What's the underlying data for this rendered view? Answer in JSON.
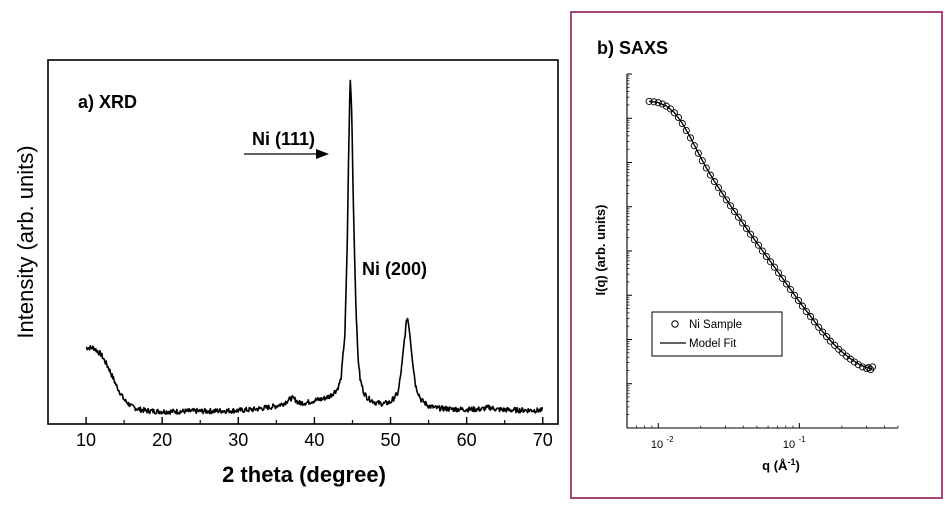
{
  "colors": {
    "frame": "#a4457a",
    "ink": "#000000",
    "background": "#ffffff"
  },
  "chart_data": [
    {
      "type": "line",
      "panel_label": "a) XRD",
      "xlabel": "2 theta (degree)",
      "ylabel": "Intensity (arb. units)",
      "xlim": [
        5,
        72
      ],
      "ylim": [
        0,
        105
      ],
      "x_ticks": [
        10,
        20,
        30,
        40,
        50,
        60,
        70
      ],
      "y_tick_labels_shown": false,
      "grid": false,
      "series": [
        {
          "x": [
            10,
            11,
            12,
            13,
            14,
            15,
            16,
            17,
            18,
            20,
            22,
            24,
            26,
            28,
            30,
            32,
            34,
            35,
            36,
            37,
            37.5,
            38,
            39,
            40,
            41,
            42,
            43,
            43.5,
            44,
            44.3,
            44.5,
            44.7,
            44.9,
            45.1,
            45.4,
            45.7,
            46,
            46.5,
            47,
            48,
            49,
            50,
            51,
            51.5,
            52,
            52.2,
            52.5,
            52.9,
            53.3,
            54,
            55,
            56,
            58,
            60,
            62,
            63,
            64,
            66,
            68,
            70
          ],
          "y": [
            22,
            22,
            20,
            16,
            11,
            7,
            5,
            4.2,
            3.8,
            3.6,
            3.6,
            3.7,
            3.7,
            3.8,
            3.9,
            4.2,
            4.8,
            5.2,
            6.0,
            7.5,
            7.0,
            6.0,
            6.2,
            6.8,
            7.2,
            8.0,
            10,
            13,
            26,
            50,
            78,
            100,
            90,
            65,
            38,
            20,
            13,
            9,
            7.5,
            6.2,
            5.8,
            6.3,
            9,
            17,
            28,
            31,
            27,
            18,
            11,
            7,
            5.2,
            4.6,
            4.3,
            4.2,
            4.3,
            4.8,
            4.2,
            4.0,
            4.0,
            3.9
          ]
        }
      ],
      "annotations": [
        {
          "text": "Ni (111)",
          "x": 44.7,
          "y": 100,
          "arrow": true
        },
        {
          "text": "Ni (200)",
          "x": 52.2,
          "y": 31
        }
      ]
    },
    {
      "type": "line",
      "panel_label": "b) SAXS",
      "xlabel_base": "q (Å",
      "xlabel_sup": "-1",
      "xlabel_close": ")",
      "ylabel": "I(q) (arb. units)",
      "x_scale": "log",
      "y_scale": "log",
      "xlim": [
        0.006,
        0.5
      ],
      "ylim": [
        0.0001,
        10000
      ],
      "x_tick_labels": [
        {
          "value": 0.01,
          "base": "10",
          "exp": "-2"
        },
        {
          "value": 0.1,
          "base": "10",
          "exp": "-1"
        }
      ],
      "y_tick_labels_shown": false,
      "grid": false,
      "legend": {
        "position": "bottom-left",
        "entries": [
          "Ni Sample",
          "Model Fit"
        ]
      },
      "series": [
        {
          "name": "Ni Sample",
          "marker": "open-circle",
          "x": [
            0.0086,
            0.0093,
            0.01,
            0.0107,
            0.0114,
            0.0122,
            0.013,
            0.0139,
            0.0148,
            0.0158,
            0.0169,
            0.018,
            0.0192,
            0.0205,
            0.0219,
            0.0234,
            0.025,
            0.0267,
            0.0285,
            0.0304,
            0.0325,
            0.0347,
            0.037,
            0.0395,
            0.0422,
            0.045,
            0.048,
            0.0513,
            0.0547,
            0.0584,
            0.0624,
            0.0666,
            0.0711,
            0.0759,
            0.081,
            0.0865,
            0.0923,
            0.0985,
            0.105,
            0.112,
            0.12,
            0.128,
            0.137,
            0.146,
            0.156,
            0.166,
            0.178,
            0.19,
            0.202,
            0.216,
            0.23,
            0.246,
            0.262,
            0.28,
            0.3,
            0.31,
            0.32,
            0.33
          ],
          "y": [
            2400,
            2350,
            2250,
            2100,
            1880,
            1630,
            1330,
            1040,
            760,
            530,
            360,
            240,
            162,
            110,
            75,
            52,
            37,
            27,
            19.5,
            14.3,
            10.5,
            7.8,
            5.8,
            4.3,
            3.2,
            2.4,
            1.8,
            1.35,
            1.0,
            0.75,
            0.57,
            0.43,
            0.32,
            0.24,
            0.18,
            0.135,
            0.1,
            0.076,
            0.057,
            0.043,
            0.033,
            0.025,
            0.019,
            0.0148,
            0.0116,
            0.0092,
            0.0074,
            0.006,
            0.005,
            0.0042,
            0.0036,
            0.0031,
            0.0027,
            0.0024,
            0.0022,
            0.0023,
            0.0021,
            0.0024
          ]
        },
        {
          "name": "Model Fit",
          "marker": "none",
          "x": [
            0.0086,
            0.01,
            0.0114,
            0.013,
            0.0148,
            0.0169,
            0.0192,
            0.0219,
            0.025,
            0.0285,
            0.0325,
            0.037,
            0.0422,
            0.048,
            0.0547,
            0.0624,
            0.0711,
            0.081,
            0.0923,
            0.105,
            0.12,
            0.137,
            0.156,
            0.178,
            0.202,
            0.23,
            0.262,
            0.3,
            0.33
          ],
          "y": [
            2420,
            2260,
            1900,
            1340,
            770,
            365,
            165,
            76,
            37.5,
            19.8,
            10.6,
            5.9,
            3.25,
            1.82,
            1.02,
            0.58,
            0.325,
            0.182,
            0.102,
            0.058,
            0.0335,
            0.0193,
            0.0118,
            0.0075,
            0.0051,
            0.0037,
            0.0028,
            0.0023,
            0.0022
          ]
        }
      ]
    }
  ]
}
